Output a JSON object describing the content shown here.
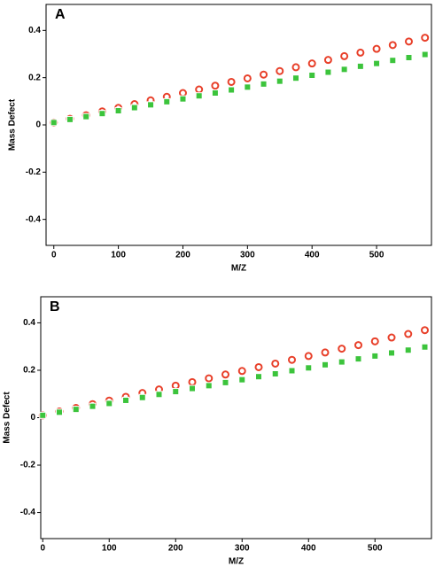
{
  "chart_data": [
    {
      "type": "scatter",
      "panel_label": "A",
      "x_label": "M/Z",
      "y_label": "Mass Defect",
      "xlim": [
        -12,
        585
      ],
      "ylim": [
        -0.51,
        0.51
      ],
      "xticks": [
        0,
        100,
        200,
        300,
        400,
        500
      ],
      "yticks": [
        -0.4,
        -0.2,
        0.0,
        0.2,
        0.4
      ],
      "x": [
        0,
        25,
        50,
        75,
        100,
        125,
        150,
        175,
        200,
        225,
        250,
        275,
        300,
        325,
        350,
        375,
        400,
        425,
        450,
        475,
        500,
        525,
        550,
        575
      ],
      "series": [
        {
          "color": "#e8402a",
          "marker": "circle",
          "values": [
            0.01,
            0.026,
            0.041,
            0.057,
            0.072,
            0.088,
            0.104,
            0.119,
            0.135,
            0.15,
            0.166,
            0.182,
            0.197,
            0.213,
            0.228,
            0.244,
            0.26,
            0.275,
            0.291,
            0.306,
            0.322,
            0.338,
            0.353,
            0.369
          ]
        },
        {
          "color": "#3cc43c",
          "marker": "square",
          "values": [
            0.01,
            0.023,
            0.035,
            0.048,
            0.06,
            0.073,
            0.085,
            0.098,
            0.11,
            0.123,
            0.135,
            0.148,
            0.16,
            0.173,
            0.185,
            0.198,
            0.21,
            0.223,
            0.235,
            0.248,
            0.26,
            0.273,
            0.285,
            0.298
          ]
        }
      ]
    },
    {
      "type": "scatter",
      "panel_label": "B",
      "x_label": "M/Z",
      "y_label": "Mass Defect",
      "xlim": [
        -3,
        585
      ],
      "ylim": [
        -0.51,
        0.51
      ],
      "xticks": [
        0,
        100,
        200,
        300,
        400,
        500
      ],
      "yticks": [
        -0.4,
        -0.2,
        0.0,
        0.2,
        0.4
      ],
      "x": [
        0,
        25,
        50,
        75,
        100,
        125,
        150,
        175,
        200,
        225,
        250,
        275,
        300,
        325,
        350,
        375,
        400,
        425,
        450,
        475,
        500,
        525,
        550,
        575
      ],
      "series": [
        {
          "color": "#e8402a",
          "marker": "circle",
          "values": [
            0.01,
            0.026,
            0.041,
            0.057,
            0.072,
            0.088,
            0.104,
            0.119,
            0.135,
            0.15,
            0.166,
            0.182,
            0.197,
            0.213,
            0.228,
            0.244,
            0.26,
            0.275,
            0.291,
            0.306,
            0.322,
            0.338,
            0.353,
            0.369
          ]
        },
        {
          "color": "#3cc43c",
          "marker": "square",
          "values": [
            0.01,
            0.023,
            0.035,
            0.048,
            0.06,
            0.073,
            0.085,
            0.098,
            0.11,
            0.123,
            0.135,
            0.148,
            0.16,
            0.173,
            0.185,
            0.198,
            0.21,
            0.223,
            0.235,
            0.248,
            0.26,
            0.273,
            0.285,
            0.298
          ]
        }
      ]
    }
  ]
}
